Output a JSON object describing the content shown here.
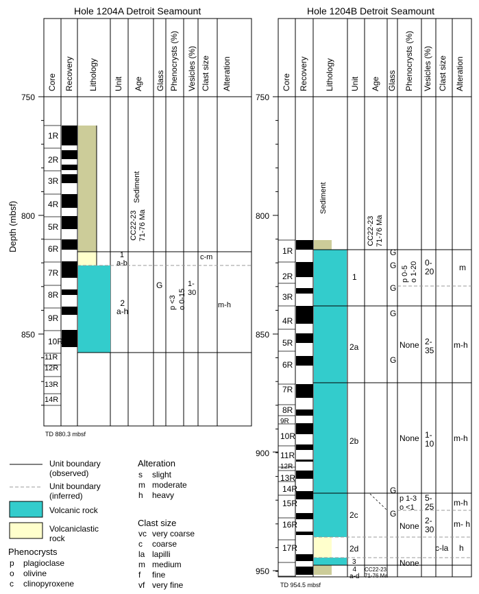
{
  "left": {
    "title": "Hole 1204A Detroit Seamount",
    "columns": [
      "Core",
      "Recovery",
      "Lithology",
      "Unit",
      "Age",
      "Glass",
      "Phenocrysts (%)",
      "Vesicles (%)",
      "Clast size",
      "Alteration"
    ],
    "depth_ticks": [
      "750",
      "800",
      "850"
    ],
    "cores": [
      "1R",
      "2R",
      "3R",
      "4R",
      "5R",
      "6R",
      "7R",
      "8R",
      "9R",
      "10R",
      "11R",
      "12R",
      "13R",
      "14R"
    ],
    "sediment_label": "Sediment",
    "age": "CC22-23\n71-76 Ma",
    "unit_1": "1\na-b",
    "unit_2": "2\na-h",
    "glass": "G",
    "phenocrysts": "p <3\no 0-15",
    "vesicles": "1-\n30",
    "clast": "c-m",
    "alteration": "m-h",
    "td": "TD 880.3 mbsf"
  },
  "right": {
    "title": "Hole 1204B Detroit Seamount",
    "columns": [
      "Core",
      "Recovery",
      "Lithology",
      "Unit",
      "Age",
      "Glass",
      "Phenocrysts (%)",
      "Vesicles (%)",
      "Clast size",
      "Alteration"
    ],
    "depth_ticks": [
      "750",
      "800",
      "850",
      "900",
      "950"
    ],
    "cores": [
      "1R",
      "2R",
      "3R",
      "4R",
      "5R",
      "6R",
      "7R",
      "8R",
      "9R",
      "10R",
      "11R",
      "12R",
      "13R",
      "14R",
      "15R",
      "16R",
      "17R"
    ],
    "sediment_label": "Sediment",
    "age": "CC22-23\n71-76 Ma",
    "age_small": "CC22-23\n71-76 Ma",
    "units": [
      "1",
      "2a",
      "2b",
      "2c",
      "2d",
      "3",
      "4\na-d"
    ],
    "glass": [
      "G",
      "G",
      "G",
      "G",
      "G",
      "G",
      "G"
    ],
    "phenocrysts": [
      "p 0-5\no 1-20",
      "None",
      "None",
      "p 1-3\no <1",
      "None",
      "None"
    ],
    "vesicles": [
      "0-\n20",
      "2-\n35",
      "1-\n10",
      "5-\n25",
      "2-\n30"
    ],
    "clast": "c-la",
    "alteration": [
      "m",
      "m-h",
      "m-h",
      "m-h",
      "m- h",
      "h"
    ],
    "td": "TD 954.5 mbsf"
  },
  "ylabel": "Depth (mbsf)",
  "legend": {
    "boundary_observed": "Unit boundary\n(observed)",
    "boundary_inferred": "Unit boundary\n(inferred)",
    "volcanic": "Volcanic rock",
    "volcaniclastic": "Volcaniclastic\nrock",
    "phenocrysts_title": "Phenocrysts",
    "phenocrysts": [
      [
        "p",
        "plagioclase"
      ],
      [
        "o",
        "olivine"
      ],
      [
        "c",
        "clinopyroxene"
      ]
    ],
    "alteration_title": "Alteration",
    "alteration": [
      [
        "s",
        "slight"
      ],
      [
        "m",
        "moderate"
      ],
      [
        "h",
        "heavy"
      ]
    ],
    "clast_title": "Clast size",
    "clast": [
      [
        "vc",
        "very coarse"
      ],
      [
        "c",
        "coarse"
      ],
      [
        "la",
        "lapilli"
      ],
      [
        "m",
        "medium"
      ],
      [
        "f",
        "fine"
      ],
      [
        "vf",
        "very fine"
      ]
    ]
  },
  "colors": {
    "volcanic": "#33cccc",
    "volcaniclastic": "#ffffcc",
    "sediment": "#cccc99",
    "inferred": "#999999"
  }
}
